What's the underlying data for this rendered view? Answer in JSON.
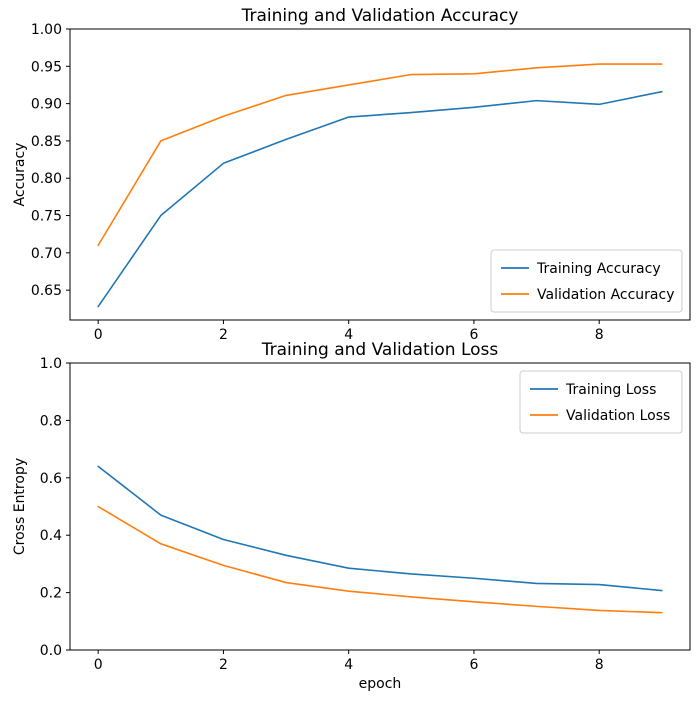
{
  "figure": {
    "background": "#ffffff"
  },
  "chart_data": [
    {
      "type": "line",
      "title": "Training and Validation Accuracy",
      "xlabel": "",
      "ylabel": "Accuracy",
      "x": [
        0,
        1,
        2,
        3,
        4,
        5,
        6,
        7,
        8,
        9
      ],
      "series": [
        {
          "name": "Training Accuracy",
          "color": "#1f77b4",
          "values": [
            0.628,
            0.75,
            0.82,
            0.852,
            0.882,
            0.888,
            0.895,
            0.904,
            0.899,
            0.916
          ]
        },
        {
          "name": "Validation Accuracy",
          "color": "#ff7f0e",
          "values": [
            0.71,
            0.85,
            0.883,
            0.911,
            0.925,
            0.939,
            0.94,
            0.948,
            0.953,
            0.953
          ]
        }
      ],
      "xlim": [
        -0.45,
        9.45
      ],
      "ylim": [
        0.61,
        1.0
      ],
      "xticks": [
        0,
        2,
        4,
        6,
        8
      ],
      "xtick_labels": [
        "0",
        "2",
        "4",
        "6",
        "8"
      ],
      "yticks": [
        0.65,
        0.7,
        0.75,
        0.8,
        0.85,
        0.9,
        0.95,
        1.0
      ],
      "ytick_labels": [
        "0.65",
        "0.70",
        "0.75",
        "0.80",
        "0.85",
        "0.90",
        "0.95",
        "1.00"
      ],
      "grid": false,
      "legend": {
        "position": "lower right",
        "entries": [
          "Training Accuracy",
          "Validation Accuracy"
        ]
      }
    },
    {
      "type": "line",
      "title": "Training and Validation Loss",
      "xlabel": "epoch",
      "ylabel": "Cross Entropy",
      "x": [
        0,
        1,
        2,
        3,
        4,
        5,
        6,
        7,
        8,
        9
      ],
      "series": [
        {
          "name": "Training Loss",
          "color": "#1f77b4",
          "values": [
            0.64,
            0.47,
            0.385,
            0.33,
            0.285,
            0.265,
            0.25,
            0.232,
            0.228,
            0.207
          ]
        },
        {
          "name": "Validation Loss",
          "color": "#ff7f0e",
          "values": [
            0.5,
            0.37,
            0.295,
            0.235,
            0.205,
            0.185,
            0.168,
            0.152,
            0.138,
            0.13
          ]
        }
      ],
      "xlim": [
        -0.45,
        9.45
      ],
      "ylim": [
        0.0,
        1.0
      ],
      "xticks": [
        0,
        2,
        4,
        6,
        8
      ],
      "xtick_labels": [
        "0",
        "2",
        "4",
        "6",
        "8"
      ],
      "yticks": [
        0.0,
        0.2,
        0.4,
        0.6,
        0.8,
        1.0
      ],
      "ytick_labels": [
        "0.0",
        "0.2",
        "0.4",
        "0.6",
        "0.8",
        "1.0"
      ],
      "grid": false,
      "legend": {
        "position": "upper right",
        "entries": [
          "Training Loss",
          "Validation Loss"
        ]
      }
    }
  ],
  "style": {
    "spine_color": "#000000",
    "tick_color": "#000000",
    "legend_frame_color": "#cccccc",
    "line_colors": {
      "training": "#1f77b4",
      "validation": "#ff7f0e"
    }
  }
}
